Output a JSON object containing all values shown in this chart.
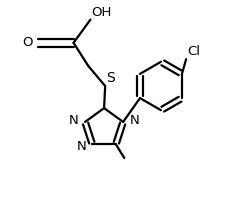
{
  "background": "#ffffff",
  "line_color": "#000000",
  "line_width": 1.6,
  "text_color": "#000000",
  "font_size": 9.5,
  "figsize": [
    2.44,
    2.12
  ],
  "dpi": 100,
  "xlim": [
    0.0,
    1.0
  ],
  "ylim": [
    0.0,
    1.0
  ]
}
